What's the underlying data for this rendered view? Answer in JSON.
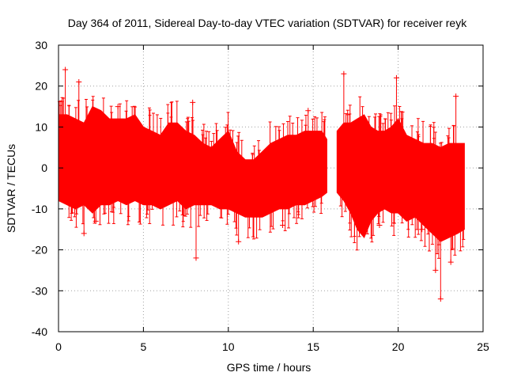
{
  "chart_data": {
    "type": "scatter",
    "title": "Day 364 of 2011, Sidereal Day-to-day VTEC variation (SDTVAR) for receiver reyk",
    "xlabel": "GPS time / hours",
    "ylabel": "SDTVAR / TECUs",
    "xlim": [
      0,
      25
    ],
    "ylim": [
      -40,
      30
    ],
    "x_ticks": [
      0,
      5,
      10,
      15,
      20,
      25
    ],
    "x_tick_labels": [
      "0",
      "5",
      "10",
      "15",
      "20",
      "25"
    ],
    "y_ticks": [
      -40,
      -30,
      -20,
      -10,
      0,
      10,
      20,
      30
    ],
    "y_tick_labels": [
      "-40",
      "-30",
      "-20",
      "-10",
      "0",
      "10",
      "20",
      "30"
    ],
    "grid": true,
    "marker": "plus-with-error-bars",
    "series_color": "#ff0000",
    "data_gap_hours": [
      15.8,
      16.4
    ],
    "envelope": {
      "x": [
        0.0,
        0.5,
        1.0,
        1.5,
        2.0,
        2.5,
        3.0,
        3.5,
        4.0,
        4.5,
        5.0,
        5.5,
        6.0,
        6.5,
        7.0,
        7.5,
        8.0,
        8.5,
        9.0,
        9.5,
        10.0,
        10.5,
        11.0,
        11.5,
        12.0,
        12.5,
        13.0,
        13.5,
        14.0,
        14.5,
        15.0,
        15.5,
        15.8,
        16.4,
        16.8,
        17.2,
        17.6,
        18.0,
        18.4,
        18.8,
        19.2,
        19.6,
        20.0,
        20.5,
        21.0,
        21.5,
        22.0,
        22.5,
        23.0,
        23.5,
        23.9
      ],
      "upper": [
        13,
        13,
        12,
        11,
        15,
        14,
        12,
        12,
        12,
        13,
        10,
        9,
        8,
        11,
        11,
        9,
        8,
        6,
        5,
        7,
        9,
        4,
        2,
        2,
        4,
        6,
        7,
        8,
        8,
        9,
        9,
        9,
        7,
        9,
        11,
        11,
        12,
        13,
        10,
        9,
        9,
        10,
        12,
        8,
        7,
        6,
        6,
        5,
        6,
        6,
        6
      ],
      "lower": [
        -8,
        -9,
        -10,
        -9,
        -11,
        -9,
        -9,
        -8,
        -9,
        -8,
        -9,
        -9,
        -10,
        -9,
        -8,
        -10,
        -9,
        -9,
        -9,
        -10,
        -10,
        -11,
        -12,
        -12,
        -12,
        -11,
        -10,
        -10,
        -9,
        -9,
        -8,
        -7,
        -6,
        -6,
        -8,
        -11,
        -15,
        -17,
        -13,
        -11,
        -10,
        -11,
        -11,
        -13,
        -12,
        -14,
        -16,
        -18,
        -17,
        -16,
        -15
      ]
    },
    "outliers": [
      {
        "x": 0.4,
        "y": 24
      },
      {
        "x": 1.2,
        "y": 21
      },
      {
        "x": 1.5,
        "y": -16
      },
      {
        "x": 2.2,
        "y": -13
      },
      {
        "x": 3.5,
        "y": 15
      },
      {
        "x": 7.9,
        "y": 16
      },
      {
        "x": 8.1,
        "y": -22
      },
      {
        "x": 10.6,
        "y": -18
      },
      {
        "x": 13.2,
        "y": -14
      },
      {
        "x": 14.7,
        "y": 14
      },
      {
        "x": 16.8,
        "y": 23
      },
      {
        "x": 18.9,
        "y": -14
      },
      {
        "x": 19.9,
        "y": 22
      },
      {
        "x": 21.4,
        "y": -15
      },
      {
        "x": 22.2,
        "y": -25
      },
      {
        "x": 22.5,
        "y": -32
      },
      {
        "x": 23.1,
        "y": -23
      },
      {
        "x": 23.4,
        "y": 17.5
      }
    ]
  }
}
